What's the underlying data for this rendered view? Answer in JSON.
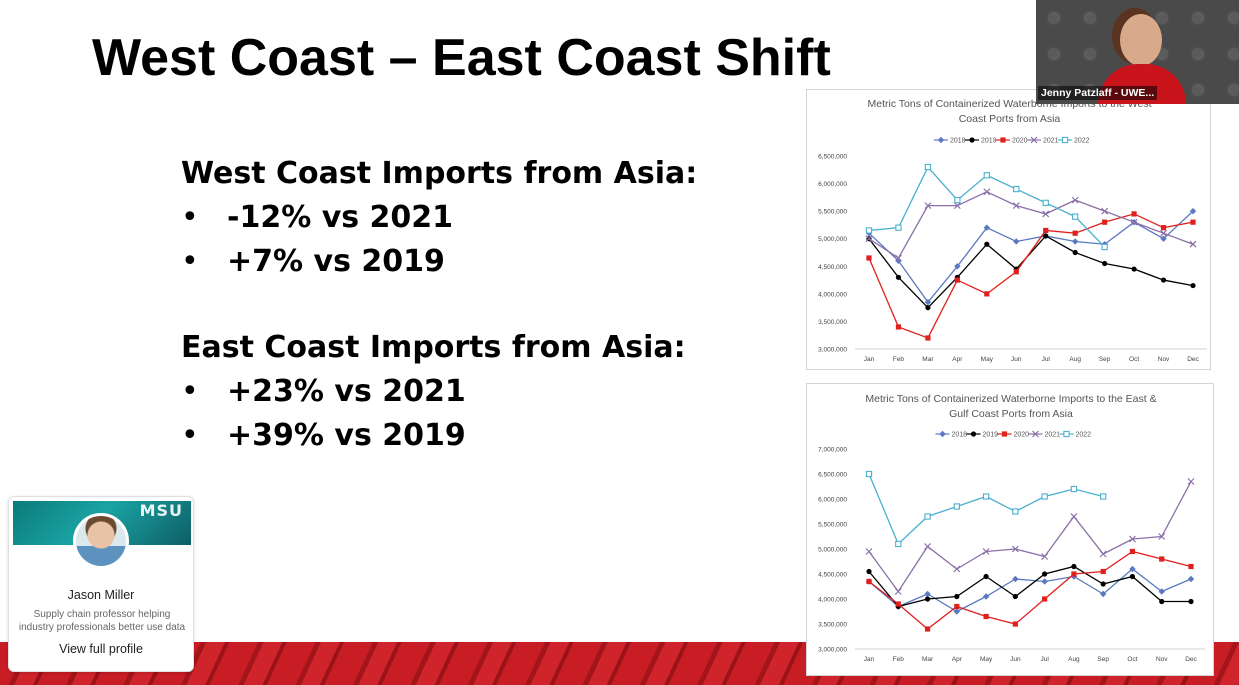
{
  "slide": {
    "title": "West Coast – East Coast Shift",
    "west_heading": "West Coast Imports from Asia:",
    "west_items": [
      "-12% vs 2021",
      "+7% vs 2019"
    ],
    "east_heading": "East Coast Imports from Asia:",
    "east_items": [
      "+23% vs 2021",
      "+39% vs 2019"
    ],
    "bullet": "•"
  },
  "video": {
    "participant_name": "Jenny Patzlaff - UWE..."
  },
  "profile_card": {
    "banner_text": "MSU",
    "name": "Jason Miller",
    "bio": "Supply chain professor helping industry professionals better use data",
    "link": "View full profile"
  },
  "chart_data": [
    {
      "type": "line",
      "title": "Metric Tons of Containerized Waterborne Imports to the West Coast Ports from Asia",
      "title_lines": [
        "Metric Tons of Containerized Waterborne Imports to the West",
        "Coast Ports from Asia"
      ],
      "categories": [
        "Jan",
        "Feb",
        "Mar",
        "Apr",
        "May",
        "Jun",
        "Jul",
        "Aug",
        "Sep",
        "Oct",
        "Nov",
        "Dec"
      ],
      "ylim": [
        3000000,
        6500000
      ],
      "yticks": [
        3000000,
        3500000,
        4000000,
        4500000,
        5000000,
        5500000,
        6000000,
        6500000
      ],
      "ytick_labels": [
        "3,000,000",
        "3,500,000",
        "4,000,000",
        "4,500,000",
        "5,000,000",
        "5,500,000",
        "6,000,000",
        "6,500,000"
      ],
      "legend_position": "top",
      "grid": false,
      "series": [
        {
          "name": "2018",
          "color": "#5b79c0",
          "marker": "diamond",
          "values": [
            5100000,
            4600000,
            3850000,
            4500000,
            5200000,
            4950000,
            5050000,
            4950000,
            4900000,
            5300000,
            5000000,
            5500000
          ]
        },
        {
          "name": "2019",
          "color": "#000000",
          "marker": "circle",
          "values": [
            5000000,
            4300000,
            3750000,
            4300000,
            4900000,
            4450000,
            5050000,
            4750000,
            4550000,
            4450000,
            4250000,
            4150000
          ]
        },
        {
          "name": "2020",
          "color": "#e0201c",
          "marker": "square",
          "values": [
            4650000,
            3400000,
            3200000,
            4250000,
            4000000,
            4400000,
            5150000,
            5100000,
            5300000,
            5450000,
            5200000,
            5300000
          ]
        },
        {
          "name": "2021",
          "color": "#8a6fa8",
          "marker": "x",
          "values": [
            5000000,
            4650000,
            5600000,
            5600000,
            5850000,
            5600000,
            5450000,
            5700000,
            5500000,
            5300000,
            5100000,
            4900000
          ]
        },
        {
          "name": "2022",
          "color": "#4ab0cf",
          "marker": "open-square",
          "values": [
            5150000,
            5200000,
            6300000,
            5700000,
            6150000,
            5900000,
            5650000,
            5400000,
            4850000,
            null,
            null,
            null
          ]
        }
      ]
    },
    {
      "type": "line",
      "title": "Metric Tons of Containerized Waterborne Imports to the East & Gulf Coast Ports from Asia",
      "title_lines": [
        "Metric Tons of Containerized Waterborne Imports to the East &",
        "Gulf Coast Ports from Asia"
      ],
      "categories": [
        "Jan",
        "Feb",
        "Mar",
        "Apr",
        "May",
        "Jun",
        "Jul",
        "Aug",
        "Sep",
        "Oct",
        "Nov",
        "Dec"
      ],
      "ylim": [
        3000000,
        7000000
      ],
      "yticks": [
        3000000,
        3500000,
        4000000,
        4500000,
        5000000,
        5500000,
        6000000,
        6500000,
        7000000
      ],
      "ytick_labels": [
        "3,000,000",
        "3,500,000",
        "4,000,000",
        "4,500,000",
        "5,000,000",
        "5,500,000",
        "6,000,000",
        "6,500,000",
        "7,000,000"
      ],
      "legend_position": "top",
      "grid": false,
      "series": [
        {
          "name": "2018",
          "color": "#5b79c0",
          "marker": "diamond",
          "values": [
            4350000,
            3850000,
            4100000,
            3750000,
            4050000,
            4400000,
            4350000,
            4450000,
            4100000,
            4600000,
            4150000,
            4400000
          ]
        },
        {
          "name": "2019",
          "color": "#000000",
          "marker": "circle",
          "values": [
            4550000,
            3850000,
            4000000,
            4050000,
            4450000,
            4050000,
            4500000,
            4650000,
            4300000,
            4450000,
            3950000,
            3950000
          ]
        },
        {
          "name": "2020",
          "color": "#e0201c",
          "marker": "square",
          "values": [
            4350000,
            3900000,
            3400000,
            3850000,
            3650000,
            3500000,
            4000000,
            4500000,
            4550000,
            4950000,
            4800000,
            4650000
          ]
        },
        {
          "name": "2021",
          "color": "#8a6fa8",
          "marker": "x",
          "values": [
            4950000,
            4150000,
            5050000,
            4600000,
            4950000,
            5000000,
            4850000,
            5650000,
            4900000,
            5200000,
            5250000,
            6350000
          ]
        },
        {
          "name": "2022",
          "color": "#4ab0cf",
          "marker": "open-square",
          "values": [
            6500000,
            5100000,
            5650000,
            5850000,
            6050000,
            5750000,
            6050000,
            6200000,
            6050000,
            null,
            null,
            null
          ]
        }
      ]
    }
  ]
}
